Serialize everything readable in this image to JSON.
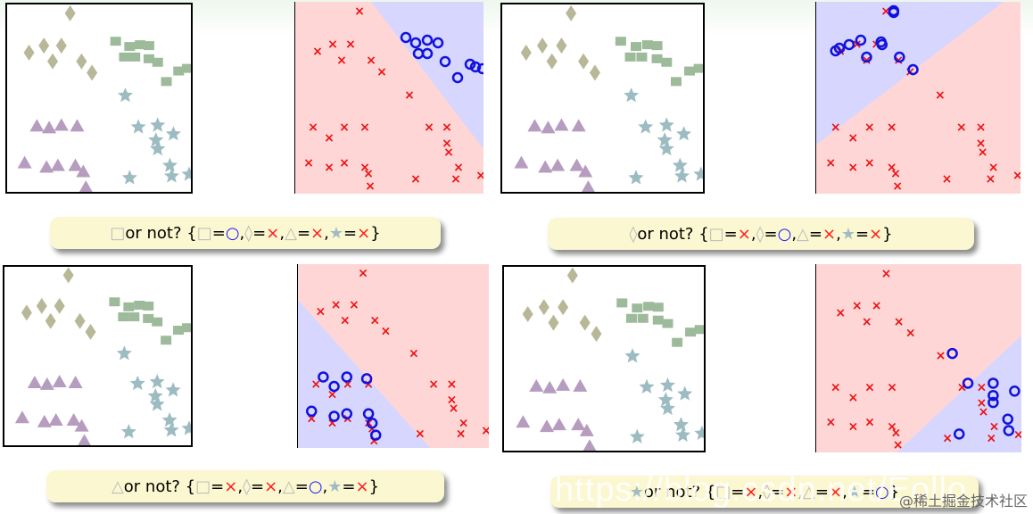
{
  "panels": [
    {
      "id": "square",
      "prefix": "□",
      "rest": " or not? {",
      "terms": [
        {
          "sym": "□",
          "val": "○",
          "cls": "o"
        },
        {
          "sym": "◊",
          "val": "×",
          "cls": "x"
        },
        {
          "sym": "△",
          "val": "×",
          "cls": "x"
        },
        {
          "sym": "★",
          "val": "×",
          "cls": "x"
        }
      ],
      "close": "}"
    },
    {
      "id": "diamond",
      "prefix": "◊",
      "rest": " or not? {",
      "terms": [
        {
          "sym": "□",
          "val": "×",
          "cls": "x"
        },
        {
          "sym": "◊",
          "val": "○",
          "cls": "o"
        },
        {
          "sym": "△",
          "val": "×",
          "cls": "x"
        },
        {
          "sym": "★",
          "val": "×",
          "cls": "x"
        }
      ],
      "close": "}"
    },
    {
      "id": "triangle",
      "prefix": "△",
      "rest": " or not? {",
      "terms": [
        {
          "sym": "□",
          "val": "×",
          "cls": "x"
        },
        {
          "sym": "◊",
          "val": "×",
          "cls": "x"
        },
        {
          "sym": "△",
          "val": "○",
          "cls": "o"
        },
        {
          "sym": "★",
          "val": "×",
          "cls": "x"
        }
      ],
      "close": "}"
    },
    {
      "id": "star",
      "prefix": "★",
      "rest": " or not? {",
      "terms": [
        {
          "sym": "□",
          "val": "×",
          "cls": "x"
        },
        {
          "sym": "◊",
          "val": "×",
          "cls": "x"
        },
        {
          "sym": "△",
          "val": "×",
          "cls": "x"
        },
        {
          "sym": "★",
          "val": "○",
          "cls": "o"
        }
      ],
      "close": "}"
    }
  ],
  "colors": {
    "diamond": "#b8b898",
    "square": "#9dba9a",
    "triangle": "#b69cbf",
    "star": "#9dbcc2",
    "region_neg": "#ffd6d6",
    "region_pos": "#d6d6ff",
    "mark_x": "#ee1111",
    "mark_o": "#1111dd"
  },
  "watermark": {
    "url": "https://blog.csdn.net/Eollo",
    "site": "@稀土掘金技术社区"
  }
}
